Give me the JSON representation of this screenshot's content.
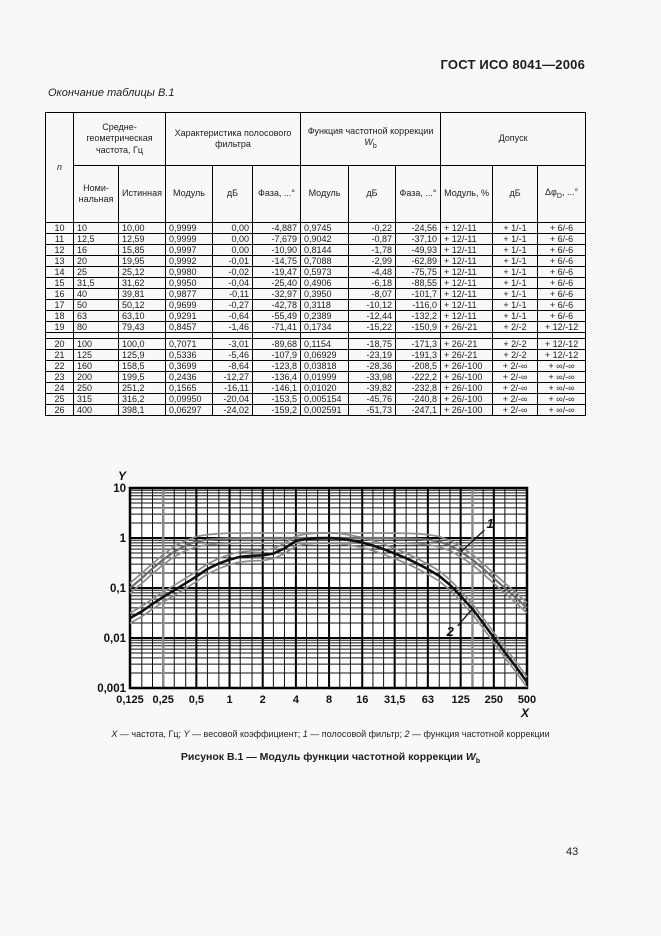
{
  "page": {
    "doc_header": "ГОСТ ИСО 8041—2006",
    "table_caption": "Окончание таблицы В.1",
    "page_number": "43"
  },
  "table": {
    "col_n": "n",
    "group_freq": "Средне-геометрическая частота, Гц",
    "group_filter": "Характеристика полосового фильтра",
    "group_correction_prefix": "Функция частотной коррекции ",
    "wb_symbol": "W",
    "wb_sub": "b",
    "group_tolerance": "Допуск",
    "sub_nominal": "Номи­наль­ная",
    "sub_true": "Истинная",
    "sub_module1": "Модуль",
    "sub_db1": "дБ",
    "sub_phase1": "Фаза, ...°",
    "sub_module2": "Модуль",
    "sub_db2": "дБ",
    "sub_phase2": "Фаза, ...°",
    "sub_module_pct": "Модуль, %",
    "sub_db3": "дБ",
    "dphi_prefix": "Δφ",
    "dphi_sub": "D",
    "dphi_suffix": ", ...°",
    "rows_a": [
      [
        "10",
        "10",
        "10,00",
        "0,9999",
        "0,00",
        "-4,887",
        "0,9745",
        "-0,22",
        "-24,56",
        "+ 12/-11",
        "+ 1/-1",
        "+ 6/-6"
      ],
      [
        "11",
        "12,5",
        "12,59",
        "0,9999",
        "0,00",
        "-7,679",
        "0,9042",
        "-0,87",
        "-37,10",
        "+ 12/-11",
        "+ 1/-1",
        "+ 6/-6"
      ],
      [
        "12",
        "16",
        "15,85",
        "0,9997",
        "0,00",
        "-10,90",
        "0,8144",
        "-1,78",
        "-49,93",
        "+ 12/-11",
        "+ 1/-1",
        "+ 6/-6"
      ],
      [
        "13",
        "20",
        "19,95",
        "0,9992",
        "-0,01",
        "-14,75",
        "0,7088",
        "-2,99",
        "-62,89",
        "+ 12/-11",
        "+ 1/-1",
        "+ 6/-6"
      ],
      [
        "14",
        "25",
        "25,12",
        "0,9980",
        "-0,02",
        "-19,47",
        "0,5973",
        "-4,48",
        "-75,75",
        "+ 12/-11",
        "+ 1/-1",
        "+ 6/-6"
      ],
      [
        "15",
        "31,5",
        "31,62",
        "0,9950",
        "-0,04",
        "-25,40",
        "0,4906",
        "-6,18",
        "-88,55",
        "+ 12/-11",
        "+ 1/-1",
        "+ 6/-6"
      ],
      [
        "16",
        "40",
        "39,81",
        "0,9877",
        "-0,11",
        "-32,97",
        "0,3950",
        "-8,07",
        "-101,7",
        "+ 12/-11",
        "+ 1/-1",
        "+ 6/-6"
      ],
      [
        "17",
        "50",
        "50,12",
        "0,9699",
        "-0,27",
        "-42,78",
        "0,3118",
        "-10,12",
        "-116,0",
        "+ 12/-11",
        "+ 1/-1",
        "+ 6/-6"
      ],
      [
        "18",
        "63",
        "63,10",
        "0,9291",
        "-0,64",
        "-55,49",
        "0,2389",
        "-12,44",
        "-132,2",
        "+ 12/-11",
        "+ 1/-1",
        "+ 6/-6"
      ],
      [
        "19",
        "80",
        "79,43",
        "0,8457",
        "-1,46",
        "-71,41",
        "0,1734",
        "-15,22",
        "-150,9",
        "+ 26/-21",
        "+ 2/-2",
        "+ 12/-12"
      ]
    ],
    "rows_b": [
      [
        "20",
        "100",
        "100,0",
        "0,7071",
        "-3,01",
        "-89,68",
        "0,1154",
        "-18,75",
        "-171,3",
        "+ 26/-21",
        "+ 2/-2",
        "+ 12/-12"
      ],
      [
        "21",
        "125",
        "125,9",
        "0,5336",
        "-5,46",
        "-107,9",
        "0,06929",
        "-23,19",
        "-191,3",
        "+ 26/-21",
        "+ 2/-2",
        "+ 12/-12"
      ],
      [
        "22",
        "160",
        "158,5",
        "0,3699",
        "-8,64",
        "-123,8",
        "0,03818",
        "-28,36",
        "-208,5",
        "+ 26/-100",
        "+ 2/-∞",
        "+ ∞/-∞"
      ],
      [
        "23",
        "200",
        "199,5",
        "0,2436",
        "-12,27",
        "-136,4",
        "0,01999",
        "-33,98",
        "-222,2",
        "+ 26/-100",
        "+ 2/-∞",
        "+ ∞/-∞"
      ],
      [
        "24",
        "250",
        "251,2",
        "0,1565",
        "-16,11",
        "-146,1",
        "0,01020",
        "-39,82",
        "-232,8",
        "+ 26/-100",
        "+ 2/-∞",
        "+ ∞/-∞"
      ],
      [
        "25",
        "315",
        "316,2",
        "0,09950",
        "-20,04",
        "-153,5",
        "0,005154",
        "-45,76",
        "-240,8",
        "+ 26/-100",
        "+ 2/-∞",
        "+ ∞/-∞"
      ],
      [
        "26",
        "400",
        "398,1",
        "0,06297",
        "-24,02",
        "-159,2",
        "0,002591",
        "-51,73",
        "-247,1",
        "+ 26/-100",
        "+ 2/-∞",
        "+ ∞/-∞"
      ]
    ]
  },
  "chart_data": {
    "type": "line",
    "title": "Рисунок В.1 — Модуль функции частотной коррекции Wb",
    "xlabel": "X",
    "ylabel": "Y",
    "x_axis_meaning": "частота, Гц",
    "y_axis_meaning": "весовой коэффициент",
    "xscale": "log2",
    "yscale": "log10",
    "xlim": [
      0.125,
      500
    ],
    "ylim": [
      0.001,
      10
    ],
    "grid": "log-log graph paper",
    "x_tick_labels": [
      "0,125",
      "0,25",
      "0,5",
      "1",
      "2",
      "4",
      "8",
      "16",
      "31,5",
      "63",
      "125",
      "250",
      "500"
    ],
    "x_major_ticks": [
      0.125,
      0.25,
      0.5,
      1,
      2,
      4,
      8,
      16,
      31.5,
      63,
      125,
      250,
      500
    ],
    "x_minor_ticks": [
      0.16,
      0.2,
      0.315,
      0.4,
      0.63,
      0.8,
      1.25,
      1.6,
      2.5,
      3.15,
      5,
      6.3,
      10,
      12.5,
      20,
      25,
      40,
      50,
      80,
      100,
      160,
      200,
      315,
      400
    ],
    "y_tick_labels": [
      "10",
      "1",
      "0,1",
      "0,01",
      "0,001"
    ],
    "y_major_ticks": [
      10,
      1,
      0.1,
      0.01,
      0.001
    ],
    "reference_lines_x": [
      0.25,
      160
    ],
    "curve_labels": [
      {
        "label": "1",
        "meaning": "полосовой фильтр"
      },
      {
        "label": "2",
        "meaning": "функция частотной коррекции"
      }
    ],
    "x": [
      0.125,
      0.16,
      0.2,
      0.25,
      0.315,
      0.4,
      0.5,
      0.63,
      0.8,
      1,
      1.25,
      1.6,
      2,
      2.5,
      3.15,
      4,
      5,
      6.3,
      8,
      10,
      12.5,
      16,
      20,
      25,
      31.5,
      40,
      50,
      63,
      80,
      100,
      125,
      160,
      200,
      250,
      315,
      400,
      500
    ],
    "series": [
      {
        "name": "1 — полосовой фильтр (номинал)",
        "color": "#6e6e6e",
        "values": [
          0.099,
          0.157,
          0.244,
          0.37,
          0.534,
          0.7071,
          0.846,
          0.929,
          0.97,
          0.988,
          0.995,
          0.998,
          0.999,
          1,
          1,
          1,
          1,
          1,
          1,
          0.9999,
          0.9999,
          0.9997,
          0.9992,
          0.998,
          0.995,
          0.9877,
          0.9699,
          0.9291,
          0.8457,
          0.7071,
          0.5336,
          0.3699,
          0.2436,
          0.1565,
          0.0995,
          0.063,
          0.04
        ],
        "tolerance_factors": [
          1.26,
          0.79
        ]
      },
      {
        "name": "2 — функция частотной коррекции Wb (номинал)",
        "color": "#111111",
        "values": [
          0.025,
          0.034,
          0.048,
          0.066,
          0.09,
          0.125,
          0.17,
          0.24,
          0.31,
          0.37,
          0.42,
          0.44,
          0.45,
          0.49,
          0.62,
          0.87,
          0.96,
          0.99,
          1.0,
          0.9745,
          0.9042,
          0.8144,
          0.7088,
          0.5973,
          0.4906,
          0.395,
          0.3118,
          0.2389,
          0.1734,
          0.1154,
          0.06929,
          0.03818,
          0.01999,
          0.0102,
          0.005154,
          0.002591,
          0.0013
        ],
        "tolerance_factors": [
          1.26,
          0.79
        ]
      }
    ]
  },
  "figure": {
    "legend_segments": [
      {
        "i": "X",
        "t": " — частота, Гц; "
      },
      {
        "i": "Y",
        "t": " — весовой коэффициент; "
      },
      {
        "i": "1",
        "t": " — полосовой фильтр; "
      },
      {
        "i": "2",
        "t": " — функция частотной коррекции"
      }
    ],
    "title_prefix": "Рисунок В.1 — Модуль функции частотной коррекции ",
    "title_symbol": "W",
    "title_sub": "b"
  }
}
